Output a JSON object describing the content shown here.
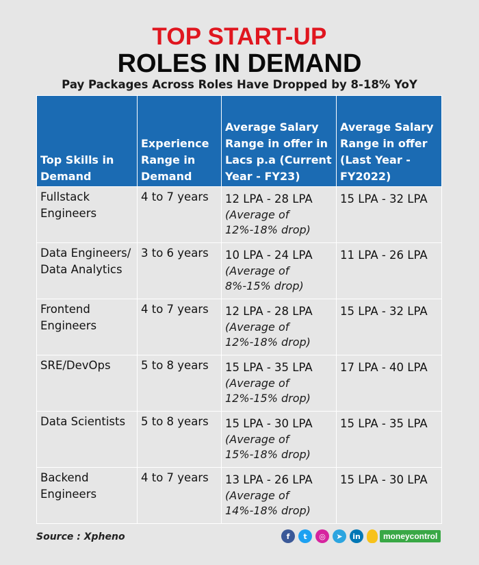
{
  "header": {
    "title_line1": "TOP START-UP",
    "title_line2": "ROLES IN DEMAND",
    "subtitle": "Pay Packages Across Roles Have Dropped by 8-18% YoY"
  },
  "table": {
    "headers": [
      "Top Skills in Demand",
      "Experience Range in Demand",
      "Average Salary Range in offer in Lacs p.a (Current Year - FY23)",
      "Average Salary Range in offer (Last Year - FY2022)"
    ],
    "rows": [
      {
        "skill": "Fullstack Engineers",
        "experience": "4 to 7 years",
        "current_range": "12 LPA - 28 LPA",
        "current_note": "(Average of 12%-18% drop)",
        "last_range": "15 LPA - 32 LPA"
      },
      {
        "skill": "Data Engineers/ Data Analytics",
        "experience": "3 to 6 years",
        "current_range": "10 LPA - 24 LPA",
        "current_note": "(Average of 8%-15% drop)",
        "last_range": "11 LPA - 26 LPA"
      },
      {
        "skill": "Frontend Engineers",
        "experience": "4 to 7 years",
        "current_range": "12 LPA - 28 LPA",
        "current_note": "(Average of 12%-18% drop)",
        "last_range": "15 LPA - 32 LPA"
      },
      {
        "skill": "SRE/DevOps",
        "experience": "5 to 8 years",
        "current_range": "15 LPA - 35 LPA",
        "current_note": "(Average of 12%-15% drop)",
        "last_range": "17 LPA - 40 LPA"
      },
      {
        "skill": "Data Scientists",
        "experience": "5 to 8 years",
        "current_range": "15 LPA - 30 LPA",
        "current_note": "(Average of 15%-18% drop)",
        "last_range": "15 LPA - 35 LPA"
      },
      {
        "skill": "Backend Engineers",
        "experience": "4 to 7 years",
        "current_range": "13 LPA - 26 LPA",
        "current_note": "(Average of 14%-18% drop)",
        "last_range": "15 LPA - 30 LPA"
      }
    ]
  },
  "footer": {
    "source": "Source : Xpheno",
    "social": [
      {
        "name": "facebook",
        "glyph": "f",
        "color": "#3b5998"
      },
      {
        "name": "twitter",
        "glyph": "t",
        "color": "#1da1f2"
      },
      {
        "name": "instagram",
        "glyph": "◎",
        "color": "#d6249f"
      },
      {
        "name": "telegram",
        "glyph": "➤",
        "color": "#2ca5e0"
      },
      {
        "name": "linkedin",
        "glyph": "in",
        "color": "#0077b5"
      }
    ],
    "brand": "moneycontrol"
  }
}
